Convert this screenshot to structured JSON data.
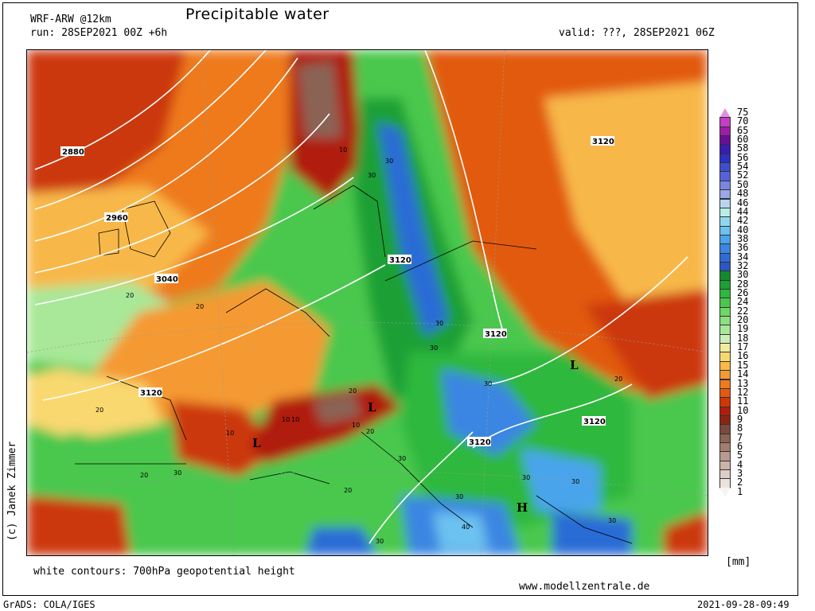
{
  "header": {
    "model": "WRF-ARW @12km",
    "title": "Precipitable water",
    "run": "run: 28SEP2021 00Z +6h",
    "valid": "valid: ???, 28SEP2021 06Z"
  },
  "footer": {
    "contours_note": "white contours: 700hPa geopotential height",
    "website": "www.modellzentrale.de",
    "grads": "GrADS: COLA/IGES",
    "timestamp": "2021-09-28-09:49",
    "copyright": "(c) Janek Zimmer"
  },
  "legend": {
    "unit": "[mm]",
    "levels": [
      {
        "label": "75",
        "color": "#e48fe0"
      },
      {
        "label": "70",
        "color": "#c23fc6"
      },
      {
        "label": "65",
        "color": "#9d1da8"
      },
      {
        "label": "60",
        "color": "#6a0f94"
      },
      {
        "label": "58",
        "color": "#3b1bb2"
      },
      {
        "label": "56",
        "color": "#2e30c2"
      },
      {
        "label": "54",
        "color": "#3d4fd0"
      },
      {
        "label": "52",
        "color": "#5663d8"
      },
      {
        "label": "50",
        "color": "#7a86e2"
      },
      {
        "label": "48",
        "color": "#9aa8ea"
      },
      {
        "label": "46",
        "color": "#b8d4ef"
      },
      {
        "label": "44",
        "color": "#b8ede8"
      },
      {
        "label": "42",
        "color": "#8fd8ee"
      },
      {
        "label": "40",
        "color": "#6cc2f0"
      },
      {
        "label": "38",
        "color": "#4aa4ec"
      },
      {
        "label": "36",
        "color": "#3a86e2"
      },
      {
        "label": "34",
        "color": "#2c6cd6"
      },
      {
        "label": "32",
        "color": "#2a58c4"
      },
      {
        "label": "30",
        "color": "#138a2c"
      },
      {
        "label": "28",
        "color": "#1ea035"
      },
      {
        "label": "26",
        "color": "#2db83e"
      },
      {
        "label": "24",
        "color": "#4ac84e"
      },
      {
        "label": "22",
        "color": "#6fd766"
      },
      {
        "label": "20",
        "color": "#8ee07e"
      },
      {
        "label": "19",
        "color": "#a8e898"
      },
      {
        "label": "18",
        "color": "#ccefb8"
      },
      {
        "label": "17",
        "color": "#f2ec9c"
      },
      {
        "label": "16",
        "color": "#f9d870"
      },
      {
        "label": "15",
        "color": "#f8b84a"
      },
      {
        "label": "14",
        "color": "#f59a32"
      },
      {
        "label": "13",
        "color": "#ee7a1e"
      },
      {
        "label": "12",
        "color": "#e25a10"
      },
      {
        "label": "11",
        "color": "#cc380a"
      },
      {
        "label": "10",
        "color": "#b01d0a"
      },
      {
        "label": "9",
        "color": "#8c2414"
      },
      {
        "label": "8",
        "color": "#7a4a3c"
      },
      {
        "label": "7",
        "color": "#8a6454"
      },
      {
        "label": "6",
        "color": "#a27e70"
      },
      {
        "label": "5",
        "color": "#b89a8e"
      },
      {
        "label": "4",
        "color": "#ccb4aa"
      },
      {
        "label": "3",
        "color": "#dccdc6"
      },
      {
        "label": "2",
        "color": "#ece2dd"
      },
      {
        "label": "1",
        "color": "#f8f4f2"
      }
    ]
  },
  "map": {
    "contour_labels": [
      "2880",
      "2960",
      "3040",
      "3120",
      "3120",
      "3120",
      "3120",
      "3120",
      "3120"
    ],
    "pw_labels": [
      "10",
      "30",
      "30",
      "30",
      "30",
      "30",
      "20",
      "20",
      "20",
      "20",
      "20",
      "10",
      "10",
      "10",
      "10",
      "20",
      "30",
      "30",
      "30",
      "30",
      "40",
      "30",
      "20",
      "30",
      "30",
      "20"
    ],
    "pressure_marks": [
      "L",
      "L",
      "L",
      "H"
    ]
  }
}
